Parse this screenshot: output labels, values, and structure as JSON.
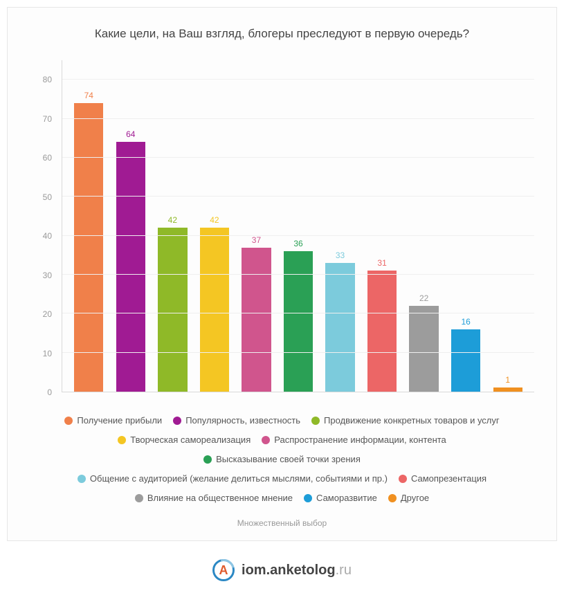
{
  "chart": {
    "type": "bar",
    "title": "Какие цели, на Ваш взгляд, блогеры преследуют в первую очередь?",
    "title_fontsize": 17,
    "background": "#fdfdfd",
    "border_color": "#e6e6e6",
    "axis_color": "#d9d9d9",
    "grid_color": "#efefef",
    "ylim_min": 0,
    "ylim_max": 85,
    "yticks": [
      0,
      10,
      20,
      30,
      40,
      50,
      60,
      70,
      80
    ],
    "ytick_color": "#999999",
    "ytick_fontsize": 12,
    "bar_width_ratio": 0.7,
    "label_fontsize": 12,
    "series": [
      {
        "label": "Получение прибыли",
        "value": 74,
        "color": "#f0804a"
      },
      {
        "label": "Популярность, известность",
        "value": 64,
        "color": "#a01b93"
      },
      {
        "label": "Продвижение конкретных товаров и услуг",
        "value": 42,
        "color": "#8fb928"
      },
      {
        "label": "Творческая самореализация",
        "value": 42,
        "color": "#f4c623"
      },
      {
        "label": "Распространение информации, контента",
        "value": 37,
        "color": "#d0558d"
      },
      {
        "label": "Высказывание своей точки зрения",
        "value": 36,
        "color": "#2aa055"
      },
      {
        "label": "Общение с аудиторией (желание делиться мыслями, событиями и пр.)",
        "value": 33,
        "color": "#7ccbdc"
      },
      {
        "label": "Самопрезентация",
        "value": 31,
        "color": "#ec6666"
      },
      {
        "label": "Влияние на общественное мнение",
        "value": 22,
        "color": "#9c9c9c"
      },
      {
        "label": "Саморазвитие",
        "value": 16,
        "color": "#1d9dd8"
      },
      {
        "label": "Другое",
        "value": 1,
        "color": "#f09020"
      }
    ],
    "legend_rows": [
      [
        0,
        1,
        2
      ],
      [
        3,
        4
      ],
      [
        5
      ],
      [
        6,
        7
      ],
      [
        8,
        9,
        10
      ]
    ],
    "footnote": "Множественный выбор"
  },
  "brand": {
    "badge_letter": "A",
    "name_strong": "iom.anketolog",
    "name_grey": ".ru",
    "badge_border": "#2b88c4",
    "badge_letter_color": "#e05a2b"
  }
}
